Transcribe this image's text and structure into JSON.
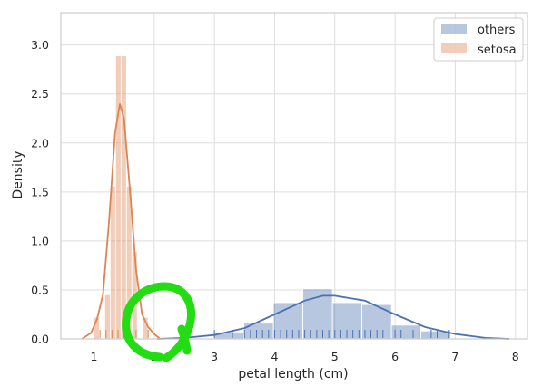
{
  "chart_data": {
    "type": "histogram",
    "xlabel": "petal length (cm)",
    "ylabel": "Density",
    "xlim": [
      0.45,
      8.2
    ],
    "ylim": [
      0,
      3.33
    ],
    "x_ticks": [
      1,
      2,
      3,
      4,
      5,
      6,
      7,
      8
    ],
    "y_ticks": [
      0.0,
      0.5,
      1.0,
      1.5,
      2.0,
      2.5,
      3.0
    ],
    "y_tick_labels": [
      "0.0",
      "0.5",
      "1.0",
      "1.5",
      "2.0",
      "2.5",
      "3.0"
    ],
    "grid": true,
    "legend_position": "top-right",
    "series": [
      {
        "name": "others",
        "color": "#4c72b0",
        "hist": [
          {
            "x0": 3.0,
            "x1": 3.49,
            "density": 0.07
          },
          {
            "x0": 3.49,
            "x1": 3.98,
            "density": 0.16
          },
          {
            "x0": 3.98,
            "x1": 4.47,
            "density": 0.37
          },
          {
            "x0": 4.47,
            "x1": 4.96,
            "density": 0.51
          },
          {
            "x0": 4.96,
            "x1": 5.45,
            "density": 0.37
          },
          {
            "x0": 5.45,
            "x1": 5.94,
            "density": 0.35
          },
          {
            "x0": 5.94,
            "x1": 6.43,
            "density": 0.14
          },
          {
            "x0": 6.43,
            "x1": 6.92,
            "density": 0.08
          }
        ],
        "kde": [
          [
            2.05,
            0.0
          ],
          [
            2.5,
            0.01
          ],
          [
            3.0,
            0.04
          ],
          [
            3.5,
            0.11
          ],
          [
            4.0,
            0.25
          ],
          [
            4.5,
            0.39
          ],
          [
            4.8,
            0.44
          ],
          [
            5.0,
            0.44
          ],
          [
            5.5,
            0.39
          ],
          [
            6.0,
            0.25
          ],
          [
            6.5,
            0.12
          ],
          [
            7.0,
            0.05
          ],
          [
            7.5,
            0.01
          ],
          [
            7.9,
            0.0
          ]
        ],
        "rug": [
          3.0,
          3.3,
          3.5,
          3.6,
          3.7,
          3.8,
          3.9,
          4.0,
          4.1,
          4.2,
          4.3,
          4.4,
          4.5,
          4.6,
          4.7,
          4.8,
          4.9,
          5.0,
          5.1,
          5.2,
          5.3,
          5.4,
          5.5,
          5.6,
          5.7,
          5.8,
          5.9,
          6.0,
          6.1,
          6.3,
          6.4,
          6.6,
          6.7,
          6.9
        ]
      },
      {
        "name": "setosa",
        "color": "#dd8452",
        "hist": [
          {
            "x0": 1.0,
            "x1": 1.09,
            "density": 0.22
          },
          {
            "x0": 1.09,
            "x1": 1.18,
            "density": 0.0
          },
          {
            "x0": 1.18,
            "x1": 1.27,
            "density": 0.45
          },
          {
            "x0": 1.27,
            "x1": 1.36,
            "density": 1.56
          },
          {
            "x0": 1.36,
            "x1": 1.45,
            "density": 2.89
          },
          {
            "x0": 1.45,
            "x1": 1.54,
            "density": 2.89
          },
          {
            "x0": 1.54,
            "x1": 1.63,
            "density": 1.56
          },
          {
            "x0": 1.63,
            "x1": 1.72,
            "density": 0.89
          },
          {
            "x0": 1.72,
            "x1": 1.81,
            "density": 0.0
          },
          {
            "x0": 1.81,
            "x1": 1.9,
            "density": 0.22
          }
        ],
        "kde": [
          [
            0.8,
            0.0
          ],
          [
            0.95,
            0.06
          ],
          [
            1.05,
            0.2
          ],
          [
            1.15,
            0.45
          ],
          [
            1.25,
            1.2
          ],
          [
            1.35,
            2.1
          ],
          [
            1.43,
            2.4
          ],
          [
            1.5,
            2.25
          ],
          [
            1.6,
            1.5
          ],
          [
            1.7,
            0.7
          ],
          [
            1.8,
            0.25
          ],
          [
            1.9,
            0.12
          ],
          [
            2.0,
            0.05
          ],
          [
            2.1,
            0.0
          ]
        ],
        "rug": [
          1.0,
          1.1,
          1.2,
          1.3,
          1.4,
          1.5,
          1.6,
          1.7,
          1.9
        ]
      }
    ]
  },
  "annotation": {
    "type": "green-scribble-circle",
    "color": "#22dd11"
  }
}
